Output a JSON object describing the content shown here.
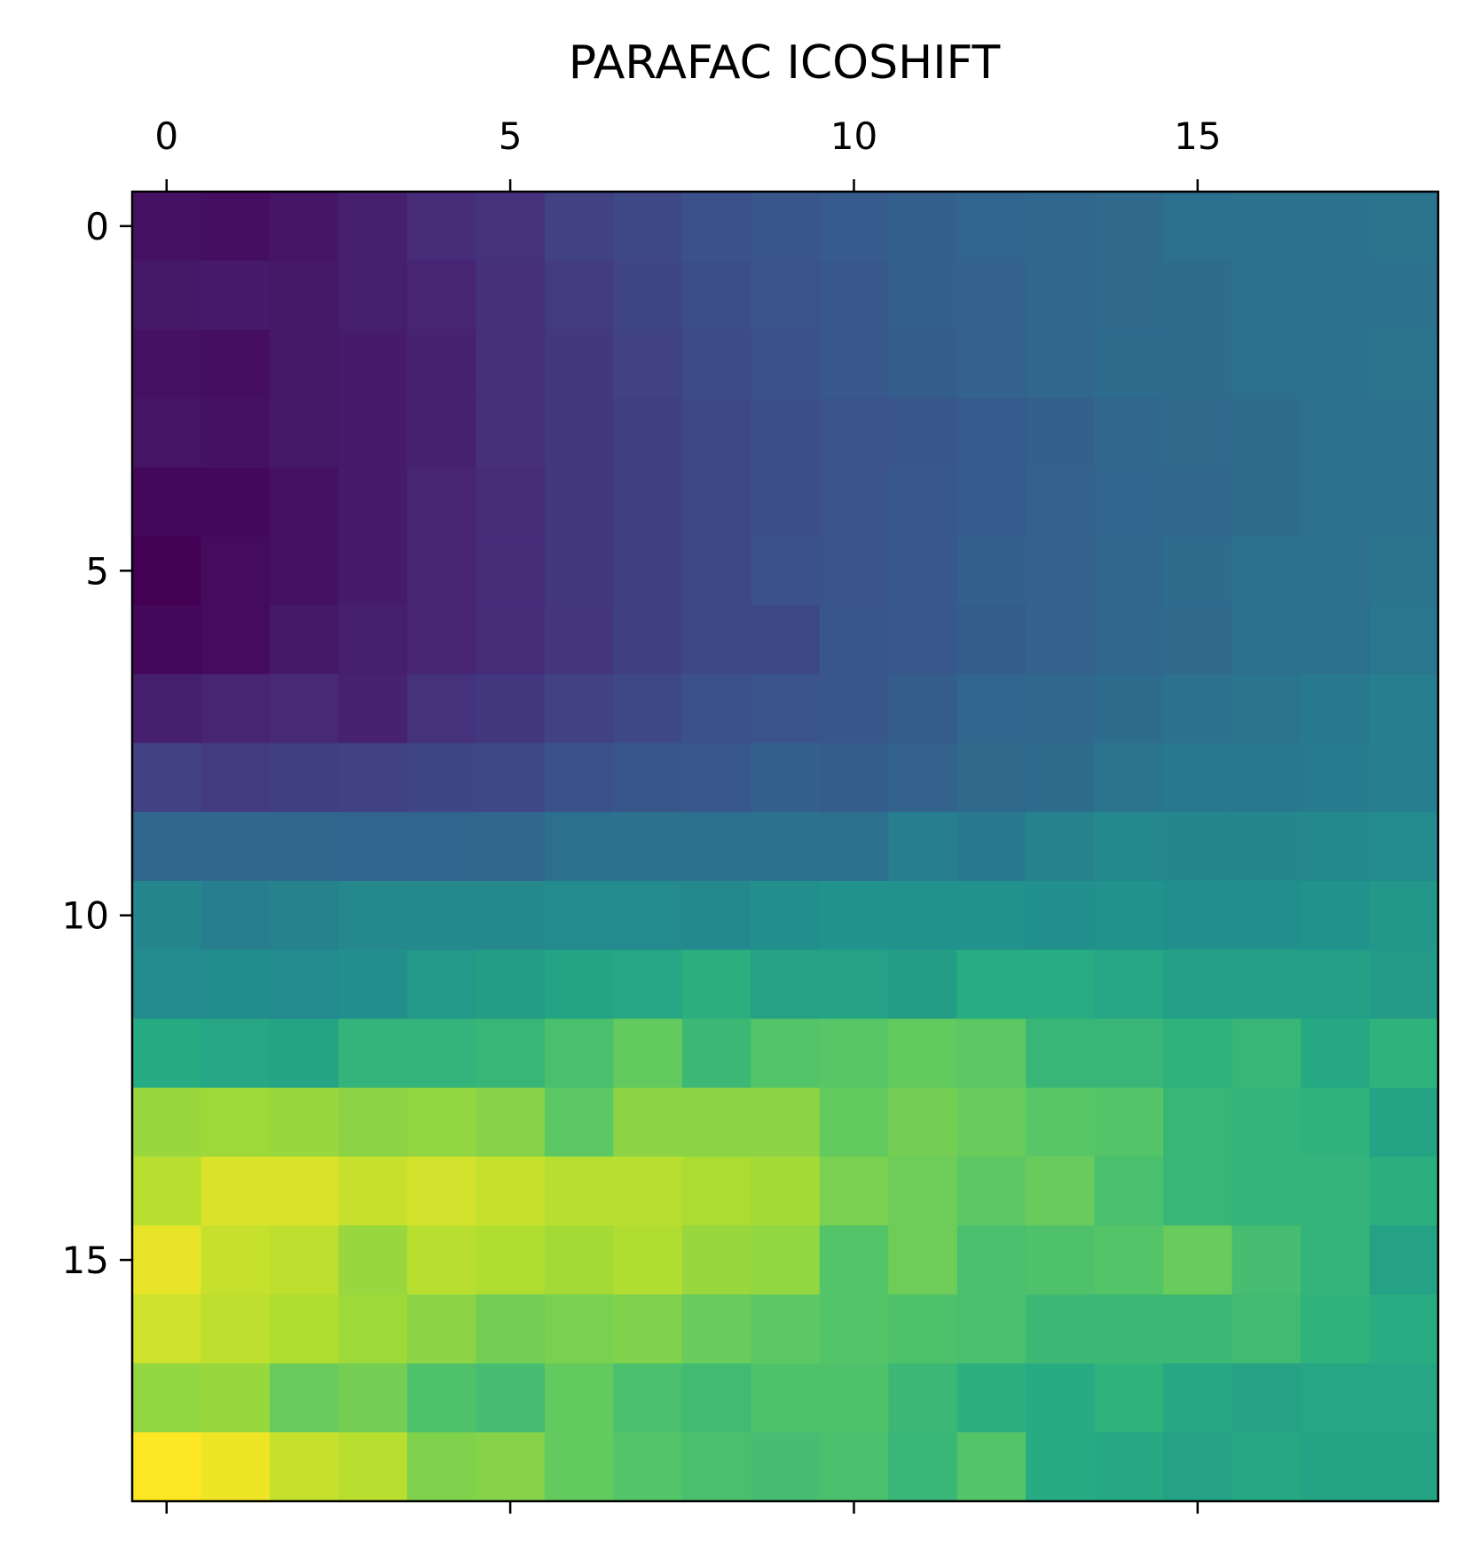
{
  "chart_data": {
    "type": "heatmap",
    "title": "PARAFAC ICOSHIFT",
    "colormap": "viridis",
    "x_ticks": [
      "0",
      "5",
      "10",
      "15"
    ],
    "y_ticks": [
      "0",
      "5",
      "10",
      "15"
    ],
    "x_tick_positions": [
      0,
      5,
      10,
      15
    ],
    "y_tick_positions": [
      0,
      5,
      10,
      15
    ],
    "x_axis_position": "top",
    "grid": false,
    "ncols": 19,
    "nrows": 19,
    "values": [
      [
        0.05,
        0.04,
        0.06,
        0.09,
        0.13,
        0.15,
        0.2,
        0.22,
        0.25,
        0.27,
        0.29,
        0.31,
        0.33,
        0.34,
        0.35,
        0.37,
        0.38,
        0.38,
        0.39
      ],
      [
        0.07,
        0.08,
        0.07,
        0.09,
        0.11,
        0.14,
        0.18,
        0.21,
        0.24,
        0.26,
        0.28,
        0.31,
        0.32,
        0.34,
        0.35,
        0.36,
        0.37,
        0.38,
        0.38
      ],
      [
        0.05,
        0.04,
        0.07,
        0.08,
        0.1,
        0.14,
        0.17,
        0.2,
        0.23,
        0.25,
        0.28,
        0.3,
        0.32,
        0.34,
        0.36,
        0.36,
        0.37,
        0.38,
        0.39
      ],
      [
        0.06,
        0.05,
        0.07,
        0.08,
        0.1,
        0.14,
        0.17,
        0.19,
        0.22,
        0.24,
        0.26,
        0.27,
        0.29,
        0.31,
        0.34,
        0.35,
        0.36,
        0.37,
        0.38
      ],
      [
        0.02,
        0.02,
        0.05,
        0.08,
        0.11,
        0.13,
        0.17,
        0.19,
        0.22,
        0.24,
        0.26,
        0.28,
        0.29,
        0.32,
        0.33,
        0.34,
        0.36,
        0.37,
        0.38
      ],
      [
        0.0,
        0.03,
        0.05,
        0.08,
        0.11,
        0.13,
        0.17,
        0.19,
        0.22,
        0.25,
        0.26,
        0.28,
        0.31,
        0.32,
        0.34,
        0.36,
        0.37,
        0.37,
        0.39
      ],
      [
        0.02,
        0.03,
        0.07,
        0.09,
        0.11,
        0.13,
        0.16,
        0.19,
        0.22,
        0.22,
        0.27,
        0.28,
        0.3,
        0.32,
        0.34,
        0.35,
        0.37,
        0.37,
        0.4
      ],
      [
        0.09,
        0.11,
        0.12,
        0.1,
        0.15,
        0.17,
        0.2,
        0.22,
        0.25,
        0.26,
        0.27,
        0.3,
        0.33,
        0.34,
        0.36,
        0.38,
        0.39,
        0.41,
        0.43
      ],
      [
        0.2,
        0.18,
        0.19,
        0.2,
        0.21,
        0.22,
        0.25,
        0.27,
        0.28,
        0.31,
        0.3,
        0.32,
        0.35,
        0.36,
        0.39,
        0.41,
        0.41,
        0.42,
        0.43
      ],
      [
        0.34,
        0.34,
        0.34,
        0.33,
        0.33,
        0.34,
        0.37,
        0.38,
        0.37,
        0.38,
        0.37,
        0.43,
        0.41,
        0.45,
        0.47,
        0.46,
        0.46,
        0.47,
        0.48
      ],
      [
        0.46,
        0.43,
        0.45,
        0.47,
        0.47,
        0.47,
        0.48,
        0.48,
        0.47,
        0.5,
        0.51,
        0.51,
        0.51,
        0.5,
        0.51,
        0.5,
        0.5,
        0.51,
        0.53
      ],
      [
        0.48,
        0.49,
        0.48,
        0.5,
        0.54,
        0.56,
        0.59,
        0.6,
        0.64,
        0.58,
        0.58,
        0.56,
        0.63,
        0.63,
        0.6,
        0.57,
        0.57,
        0.57,
        0.55
      ],
      [
        0.62,
        0.6,
        0.59,
        0.66,
        0.66,
        0.67,
        0.71,
        0.76,
        0.68,
        0.73,
        0.74,
        0.76,
        0.75,
        0.67,
        0.67,
        0.65,
        0.67,
        0.61,
        0.65
      ],
      [
        0.85,
        0.86,
        0.85,
        0.83,
        0.84,
        0.82,
        0.75,
        0.83,
        0.83,
        0.83,
        0.76,
        0.79,
        0.77,
        0.74,
        0.73,
        0.67,
        0.66,
        0.65,
        0.59
      ],
      [
        0.9,
        0.95,
        0.95,
        0.92,
        0.94,
        0.92,
        0.9,
        0.9,
        0.88,
        0.87,
        0.8,
        0.78,
        0.75,
        0.77,
        0.71,
        0.67,
        0.66,
        0.66,
        0.64
      ],
      [
        0.97,
        0.92,
        0.91,
        0.85,
        0.9,
        0.89,
        0.87,
        0.89,
        0.85,
        0.84,
        0.73,
        0.78,
        0.71,
        0.72,
        0.73,
        0.77,
        0.7,
        0.66,
        0.58
      ],
      [
        0.93,
        0.91,
        0.89,
        0.86,
        0.83,
        0.79,
        0.8,
        0.81,
        0.77,
        0.75,
        0.73,
        0.72,
        0.71,
        0.68,
        0.68,
        0.68,
        0.69,
        0.65,
        0.63
      ],
      [
        0.84,
        0.85,
        0.77,
        0.79,
        0.72,
        0.7,
        0.76,
        0.71,
        0.69,
        0.72,
        0.72,
        0.68,
        0.64,
        0.62,
        0.65,
        0.61,
        0.58,
        0.6,
        0.6
      ],
      [
        1.0,
        0.98,
        0.92,
        0.9,
        0.81,
        0.82,
        0.76,
        0.73,
        0.71,
        0.7,
        0.71,
        0.67,
        0.73,
        0.62,
        0.61,
        0.58,
        0.61,
        0.59,
        0.59
      ]
    ]
  }
}
